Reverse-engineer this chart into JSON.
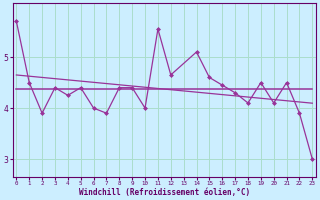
{
  "xlabel": "Windchill (Refroidissement éolien,°C)",
  "background_color": "#cceeff",
  "grid_color": "#aaddcc",
  "line_color": "#993399",
  "x": [
    0,
    1,
    2,
    3,
    4,
    5,
    6,
    7,
    8,
    9,
    10,
    11,
    12,
    14,
    15,
    16,
    17,
    18,
    19,
    20,
    21,
    22,
    23
  ],
  "y_data": [
    5.7,
    4.5,
    3.9,
    4.4,
    4.25,
    4.4,
    4.0,
    3.9,
    4.4,
    4.4,
    4.0,
    5.55,
    4.65,
    5.1,
    4.6,
    4.45,
    4.3,
    4.1,
    4.5,
    4.1,
    4.5,
    3.9,
    3.0
  ],
  "ylim": [
    2.65,
    6.05
  ],
  "yticks": [
    3,
    4,
    5
  ],
  "figsize": [
    3.2,
    2.0
  ],
  "dpi": 100
}
